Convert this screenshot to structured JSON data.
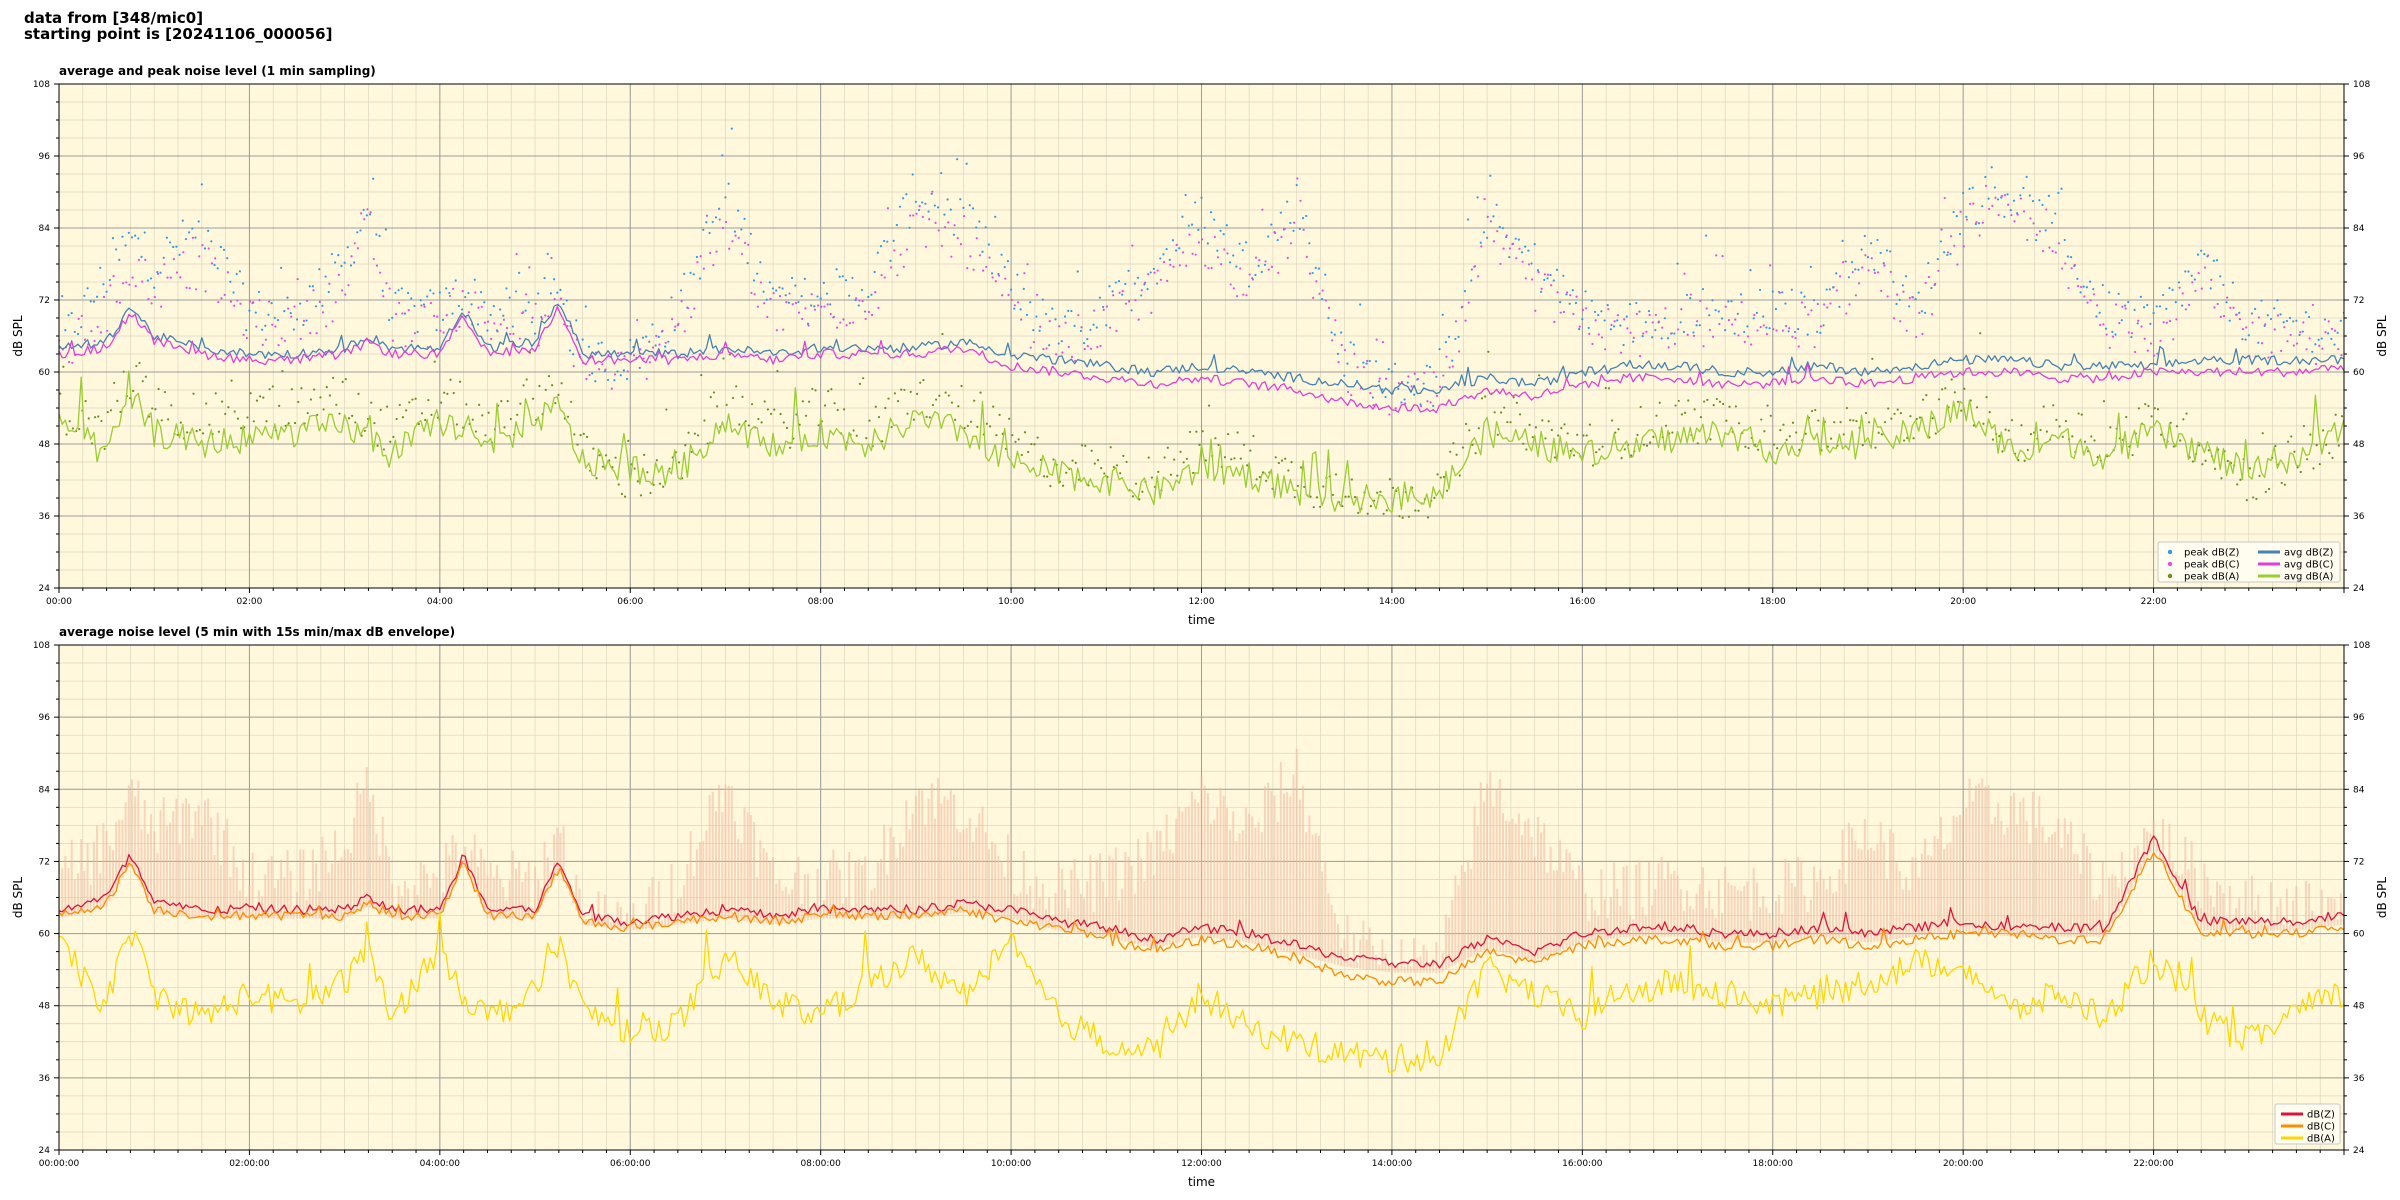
{
  "header": {
    "line1": "data from [348/mic0]",
    "line2": "starting point is [20241106_000056]"
  },
  "colors": {
    "background": "#fff8dc",
    "grid_major": "#9c9c9c",
    "grid_minor": "#ddd6c0",
    "avg_z": "#4682b4",
    "avg_c": "#e040d8",
    "avg_a": "#9acd32",
    "peak_z": "#3399e6",
    "peak_c": "#e050e0",
    "peak_a": "#6b8e23",
    "dbz": "#dc143c",
    "dbc": "#ff8c00",
    "dba": "#ffd700",
    "envelope": "#f4b8a0"
  },
  "chart_data": [
    {
      "type": "line",
      "title": "average and peak noise level (1 min sampling)",
      "xlabel": "time",
      "ylabel": "dB SPL",
      "xlim": [
        0,
        24
      ],
      "ylim": [
        24,
        108
      ],
      "yticks": [
        "24",
        "36",
        "48",
        "60",
        "72",
        "84",
        "96",
        "108"
      ],
      "xtick_values": [
        0,
        2,
        4,
        6,
        8,
        10,
        12,
        14,
        16,
        18,
        20,
        22
      ],
      "xtick_labels": [
        "00:00",
        "02:00",
        "04:00",
        "06:00",
        "08:00",
        "10:00",
        "12:00",
        "14:00",
        "16:00",
        "18:00",
        "20:00",
        "22:00"
      ],
      "grid": true,
      "legend_position": "bottom-right",
      "legend": [
        {
          "label": "peak dB(Z)",
          "kind": "dot",
          "color": "#3399e6"
        },
        {
          "label": "peak dB(C)",
          "kind": "dot",
          "color": "#e050e0"
        },
        {
          "label": "peak dB(A)",
          "kind": "dot",
          "color": "#6b8e23"
        },
        {
          "label": "avg dB(Z)",
          "kind": "line",
          "color": "#4682b4"
        },
        {
          "label": "avg dB(C)",
          "kind": "line",
          "color": "#e040d8"
        },
        {
          "label": "avg dB(A)",
          "kind": "line",
          "color": "#9acd32"
        }
      ],
      "x": [
        0,
        0.5,
        0.75,
        1,
        1.5,
        2,
        2.5,
        3,
        3.25,
        3.5,
        4,
        4.25,
        4.5,
        5,
        5.25,
        5.5,
        6,
        6.5,
        7,
        7.5,
        8,
        8.5,
        9,
        9.5,
        10,
        10.5,
        11,
        11.5,
        12,
        12.5,
        13,
        13.5,
        14,
        14.5,
        15,
        15.5,
        16,
        16.5,
        17,
        17.5,
        18,
        18.5,
        19,
        19.5,
        20,
        20.5,
        21,
        21.5,
        22,
        22.5,
        23,
        23.5,
        24
      ],
      "series": [
        {
          "name": "avg dB(Z)",
          "color": "#4682b4",
          "values": [
            64,
            65,
            71,
            66,
            64,
            63,
            63,
            64,
            66,
            64,
            64,
            70,
            64,
            65,
            72,
            63,
            63,
            63,
            64,
            63,
            64,
            64,
            64,
            65,
            63,
            62,
            61,
            60,
            61,
            60,
            59,
            58,
            57,
            57,
            59,
            58,
            60,
            61,
            61,
            60,
            60,
            61,
            60,
            61,
            62,
            62,
            61,
            61,
            61,
            62,
            62,
            62,
            62
          ]
        },
        {
          "name": "avg dB(C)",
          "color": "#e040d8",
          "values": [
            63,
            64,
            70,
            65,
            63,
            62,
            62,
            63,
            65,
            63,
            63,
            69,
            63,
            64,
            71,
            62,
            62,
            62,
            63,
            62,
            63,
            63,
            63,
            64,
            61,
            60,
            59,
            58,
            59,
            58,
            57,
            55,
            54,
            54,
            57,
            56,
            58,
            59,
            59,
            58,
            58,
            59,
            58,
            59,
            60,
            60,
            59,
            59,
            60,
            60,
            60,
            60,
            61
          ]
        },
        {
          "name": "avg dB(A)",
          "color": "#9acd32",
          "values": [
            52,
            46,
            56,
            50,
            48,
            49,
            50,
            51,
            49,
            46,
            52,
            50,
            47,
            52,
            54,
            45,
            44,
            43,
            52,
            47,
            50,
            48,
            52,
            50,
            45,
            43,
            42,
            40,
            44,
            43,
            40,
            39,
            39,
            40,
            50,
            48,
            46,
            48,
            49,
            50,
            47,
            48,
            48,
            50,
            54,
            47,
            49,
            46,
            50,
            47,
            43,
            46,
            50
          ]
        },
        {
          "name": "peak dB(Z)",
          "color": "#3399e6",
          "kind": "dots",
          "values": [
            66,
            78,
            84,
            80,
            86,
            72,
            72,
            80,
            90,
            72,
            72,
            76,
            72,
            72,
            74,
            64,
            64,
            72,
            92,
            74,
            74,
            76,
            92,
            88,
            76,
            68,
            72,
            80,
            88,
            80,
            90,
            64,
            60,
            60,
            88,
            80,
            72,
            70,
            72,
            72,
            72,
            72,
            84,
            72,
            90,
            92,
            84,
            72,
            70,
            80,
            70,
            70,
            68
          ]
        },
        {
          "name": "peak dB(C)",
          "color": "#e050e0",
          "kind": "dots",
          "values": [
            64,
            72,
            80,
            76,
            80,
            70,
            70,
            76,
            86,
            70,
            70,
            74,
            70,
            70,
            72,
            63,
            62,
            70,
            86,
            72,
            72,
            74,
            86,
            84,
            72,
            66,
            70,
            76,
            84,
            76,
            86,
            62,
            58,
            58,
            84,
            76,
            70,
            68,
            70,
            70,
            70,
            70,
            80,
            70,
            86,
            88,
            80,
            70,
            68,
            76,
            68,
            68,
            66
          ]
        },
        {
          "name": "peak dB(A)",
          "color": "#6b8e23",
          "kind": "dots",
          "values": [
            56,
            52,
            62,
            56,
            54,
            56,
            56,
            58,
            54,
            52,
            58,
            56,
            52,
            58,
            60,
            48,
            44,
            46,
            58,
            52,
            56,
            52,
            58,
            56,
            50,
            46,
            46,
            44,
            50,
            48,
            44,
            42,
            41,
            42,
            56,
            52,
            50,
            52,
            54,
            54,
            52,
            52,
            52,
            54,
            58,
            50,
            54,
            50,
            54,
            50,
            44,
            48,
            52
          ]
        }
      ]
    },
    {
      "type": "line",
      "title": "average noise level (5 min with 15s min/max dB envelope)",
      "xlabel": "time",
      "ylabel": "dB SPL",
      "xlim": [
        0,
        24
      ],
      "ylim": [
        24,
        108
      ],
      "yticks": [
        "24",
        "36",
        "48",
        "60",
        "72",
        "84",
        "96",
        "108"
      ],
      "xtick_values": [
        0,
        2,
        4,
        6,
        8,
        10,
        12,
        14,
        16,
        18,
        20,
        22
      ],
      "xtick_labels": [
        "00:00:00",
        "02:00:00",
        "04:00:00",
        "06:00:00",
        "08:00:00",
        "10:00:00",
        "12:00:00",
        "14:00:00",
        "16:00:00",
        "18:00:00",
        "20:00:00",
        "22:00:00"
      ],
      "grid": true,
      "legend_position": "bottom-right",
      "legend": [
        {
          "label": "dB(Z)",
          "kind": "line",
          "color": "#dc143c"
        },
        {
          "label": "dB(C)",
          "kind": "line",
          "color": "#ff8c00"
        },
        {
          "label": "dB(A)",
          "kind": "line",
          "color": "#ffd700"
        }
      ],
      "x": [
        0,
        0.5,
        0.75,
        1,
        1.5,
        2,
        2.5,
        3,
        3.25,
        3.5,
        4,
        4.25,
        4.5,
        5,
        5.25,
        5.5,
        6,
        6.5,
        7,
        7.5,
        8,
        8.5,
        9,
        9.5,
        10,
        10.5,
        11,
        11.5,
        12,
        12.5,
        13,
        13.5,
        14,
        14.5,
        15,
        15.5,
        16,
        16.5,
        17,
        17.5,
        18,
        18.5,
        19,
        19.5,
        20,
        20.5,
        21,
        21.5,
        22,
        22.5,
        23,
        23.5,
        24
      ],
      "series": [
        {
          "name": "dB(Z)",
          "color": "#dc143c",
          "values": [
            64,
            66,
            73,
            65,
            64,
            64,
            64,
            64,
            66,
            64,
            64,
            73,
            64,
            64,
            72,
            63,
            62,
            63,
            64,
            63,
            64,
            64,
            64,
            65,
            64,
            62,
            61,
            59,
            61,
            60,
            58,
            56,
            55,
            55,
            59,
            57,
            60,
            61,
            61,
            60,
            60,
            61,
            60,
            61,
            62,
            61,
            61,
            61,
            76,
            62,
            62,
            62,
            63
          ]
        },
        {
          "name": "dB(C)",
          "color": "#ff8c00",
          "values": [
            63,
            65,
            72,
            64,
            63,
            63,
            63,
            63,
            65,
            63,
            63,
            72,
            63,
            63,
            71,
            62,
            61,
            62,
            63,
            62,
            63,
            63,
            63,
            64,
            62,
            61,
            59,
            57,
            59,
            58,
            56,
            53,
            52,
            52,
            57,
            55,
            58,
            59,
            59,
            58,
            58,
            59,
            58,
            59,
            60,
            60,
            59,
            59,
            74,
            60,
            60,
            60,
            61
          ]
        },
        {
          "name": "dB(A)",
          "color": "#ffd700",
          "values": [
            58,
            48,
            61,
            50,
            46,
            50,
            48,
            52,
            57,
            46,
            58,
            50,
            46,
            50,
            59,
            47,
            44,
            45,
            56,
            49,
            46,
            52,
            56,
            50,
            58,
            46,
            42,
            40,
            50,
            44,
            42,
            40,
            39,
            40,
            54,
            50,
            46,
            50,
            52,
            50,
            48,
            50,
            52,
            55,
            55,
            47,
            50,
            46,
            56,
            46,
            42,
            47,
            50
          ]
        },
        {
          "name": "envelope max",
          "color": "#f4b8a0",
          "kind": "envelope",
          "values": [
            72,
            78,
            86,
            80,
            84,
            72,
            72,
            78,
            88,
            72,
            72,
            78,
            72,
            72,
            80,
            66,
            64,
            72,
            88,
            72,
            72,
            72,
            86,
            84,
            74,
            70,
            72,
            76,
            86,
            80,
            90,
            62,
            58,
            58,
            88,
            80,
            70,
            70,
            72,
            70,
            70,
            72,
            80,
            72,
            84,
            84,
            80,
            70,
            80,
            72,
            68,
            68,
            66
          ]
        }
      ]
    }
  ]
}
